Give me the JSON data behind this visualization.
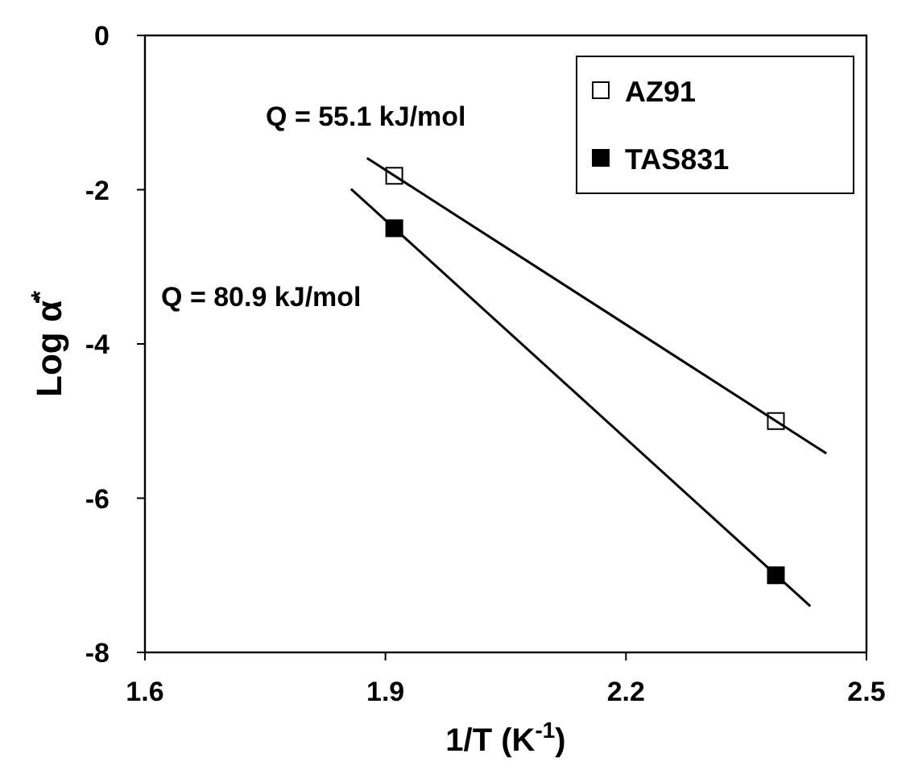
{
  "chart_data": {
    "type": "scatter",
    "xlabel": "1/T (K$^{-1}$)",
    "ylabel": "Log α̇$^{*}$",
    "xlim": [
      1.6,
      2.5
    ],
    "xticks": [
      1.6,
      1.9,
      2.2,
      2.5
    ],
    "ylim": [
      -8,
      0
    ],
    "yticks": [
      0,
      -2,
      -4,
      -6,
      -8
    ],
    "grid": false,
    "legend": "top right",
    "annotations": [
      "Q = 55.1 kJ/mol",
      "Q = 80.9 kJ/mol"
    ],
    "series": [
      {
        "name": "AZ91",
        "color": "#ffffff",
        "marker": "square",
        "x": [
          1.911,
          2.387
        ],
        "values": [
          -1.82,
          -5.0
        ]
      },
      {
        "name": "TAS831",
        "color": "#000000",
        "marker": "square",
        "x": [
          1.911,
          2.387
        ],
        "values": [
          -2.5,
          -7.0
        ]
      },
      {
        "type": "line",
        "color": "#000000",
        "x": [
          1.877,
          2.45
        ],
        "values": [
          -1.59,
          -5.42
        ]
      },
      {
        "type": "line",
        "color": "#000000",
        "x": [
          1.857,
          2.43
        ],
        "values": [
          -1.99,
          -7.4
        ]
      }
    ]
  }
}
